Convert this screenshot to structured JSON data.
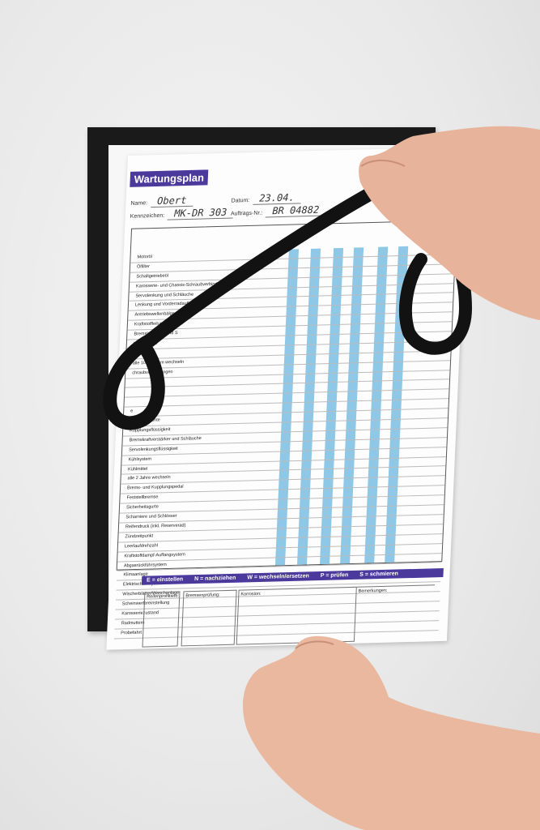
{
  "document": {
    "title": "Wartungsplan",
    "fields": [
      {
        "label": "Name:",
        "value": "Obert"
      },
      {
        "label": "Datum:",
        "value": "23.04."
      },
      {
        "label": "Kennzeichen:",
        "value": "MK-DR 303"
      },
      {
        "label": "Auftrags-Nr.:",
        "value": "BR 04882"
      }
    ],
    "rows": [
      "Motoröl",
      "Ölfilter",
      "Schaltgetriebeöl",
      "Karosserie- und Chassis-Schraubverbindungen",
      "Servolenkung und Schläuche",
      "Lenkung und Vorderradaufhängung",
      "Antriebswellenbälge",
      "Kraftstoffleitungen und S",
      "Bremsleitungen und S",
      "Karosserieu",
      "Wärme",
      "alle 100.000 km wechseln",
      "chraubverbindungen",
      "",
      "",
      "",
      "e",
      "and und Dichte",
      "Kupplungsflüssigkeit",
      "Bremskraftverstärker und Schläuche",
      "Servolenkungsflüssigkeit",
      "Kühlsystem",
      "Kühlmittel",
      "alle 2 Jahre wechseln",
      "Brems- und Kupplungspedal",
      "Feststellbremse",
      "Sicherheitsgurte",
      "Scharniere und Schlösser",
      "Reifendruck (inkl. Reserverad)",
      "Zündzeitpunkt",
      "Leerlaufdrehzahl",
      "Kraftstoffdampf-Auffangsystem",
      "Abgasrückführsystem",
      "Klimaanlage",
      "Elektrisches System",
      "Wischerblätter/Waschanlage",
      "Scheinwerfereinstellung",
      "Karosseriezustand",
      "Radmuttern",
      "Probefahrt"
    ],
    "legend": [
      "E = einstellen",
      "N = nachziehen",
      "W = wechseln/ersetzen",
      "P = prüfen",
      "S = schmieren"
    ],
    "bottom_labels": [
      "Reifenprofiltiefe:",
      "Bremsenprüfung:",
      "Korrosion:",
      "Bemerkungen:"
    ]
  },
  "colors": {
    "accent": "#4b3a9c",
    "table_blue": "#8fc8e6",
    "frame": "#1a1a1a"
  }
}
